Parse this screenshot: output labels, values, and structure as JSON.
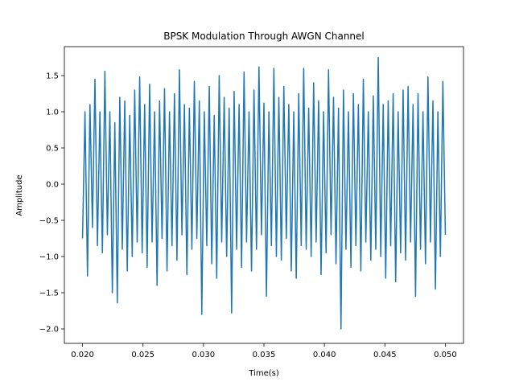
{
  "chart_data": {
    "type": "line",
    "title": "BPSK Modulation Through AWGN Channel",
    "xlabel": "Time(s)",
    "ylabel": "Amplitude",
    "xlim": [
      0.0185,
      0.0515
    ],
    "ylim": [
      -2.2,
      1.9
    ],
    "xticks": [
      0.02,
      0.025,
      0.03,
      0.035,
      0.04,
      0.045,
      0.05
    ],
    "xtick_labels": [
      "0.020",
      "0.025",
      "0.030",
      "0.035",
      "0.040",
      "0.045",
      "0.050"
    ],
    "yticks": [
      -2.0,
      -1.5,
      -1.0,
      -0.5,
      0.0,
      0.5,
      1.0,
      1.5
    ],
    "ytick_labels": [
      "−2.0",
      "−1.5",
      "−1.0",
      "−0.5",
      "0.0",
      "0.5",
      "1.0",
      "1.5"
    ],
    "grid": false,
    "series": [
      {
        "color": "#1f77b4",
        "x_start": 0.02,
        "x_end": 0.05,
        "values": [
          -0.75,
          1.0,
          -1.27,
          1.1,
          -0.6,
          1.45,
          -0.85,
          1.0,
          -0.95,
          1.56,
          -0.7,
          1.0,
          -1.5,
          0.85,
          -1.64,
          1.2,
          -0.9,
          1.15,
          -1.2,
          0.95,
          -1.0,
          1.3,
          -0.8,
          1.48,
          -0.95,
          1.1,
          -1.15,
          1.38,
          -0.8,
          1.0,
          -1.4,
          1.15,
          -0.75,
          1.32,
          -1.2,
          1.0,
          -0.85,
          1.25,
          -1.05,
          1.58,
          -0.7,
          1.1,
          -1.25,
          1.05,
          -0.9,
          1.42,
          -0.75,
          1.15,
          -1.8,
          1.0,
          -0.85,
          1.35,
          -1.1,
          0.95,
          -1.3,
          1.5,
          -0.8,
          1.2,
          -1.0,
          1.05,
          -1.78,
          1.28,
          -0.9,
          1.1,
          -1.15,
          1.55,
          -0.8,
          1.0,
          -1.2,
          1.3,
          -0.9,
          1.62,
          -0.7,
          1.12,
          -1.55,
          1.0,
          -0.85,
          1.6,
          -1.0,
          1.2,
          -1.05,
          1.35,
          -0.75,
          1.1,
          -1.2,
          1.0,
          -1.3,
          1.25,
          -0.85,
          1.6,
          -0.9,
          1.05,
          -1.0,
          1.4,
          -0.8,
          1.15,
          -1.25,
          1.0,
          -0.95,
          1.58,
          -0.7,
          1.2,
          -1.1,
          1.05,
          -2.0,
          1.3,
          -0.9,
          1.0,
          -1.15,
          1.25,
          -0.85,
          1.1,
          -1.2,
          1.45,
          -0.8,
          1.0,
          -1.05,
          1.22,
          -0.9,
          1.75,
          -1.0,
          1.1,
          -1.3,
          1.15,
          -0.85,
          1.25,
          -1.35,
          1.0,
          -0.95,
          1.3,
          -1.05,
          1.35,
          -0.8,
          1.1,
          -1.55,
          1.25,
          -0.9,
          1.0,
          -1.1,
          1.48,
          -0.8,
          1.15,
          -1.45,
          1.0,
          -1.0,
          1.42,
          -0.7
        ]
      }
    ]
  }
}
